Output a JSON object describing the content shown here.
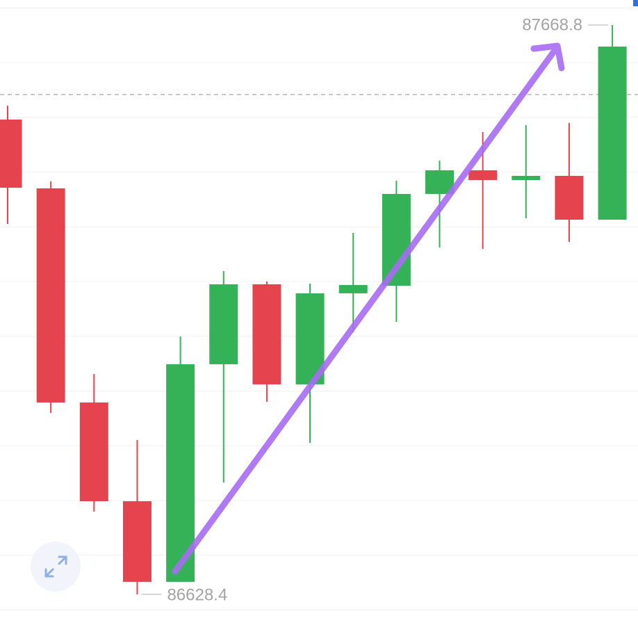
{
  "chart_data": {
    "type": "candlestick",
    "categories": [
      null,
      null,
      null,
      null,
      null,
      null,
      null,
      null,
      null,
      null,
      null,
      null,
      null,
      null,
      null
    ],
    "series": {
      "open": [
        87496.0,
        87370.3,
        86979.0,
        86798.6,
        86651.3,
        87048.9,
        87195.0,
        87012.1,
        87178.5,
        87192.4,
        87360.1,
        87403.3,
        87385.5,
        87393.1,
        87313.1
      ],
      "high": [
        87521.4,
        87383.0,
        87031.1,
        86910.4,
        87099.7,
        87219.1,
        87200.1,
        87196.2,
        87289.0,
        87384.3,
        87421.1,
        87473.2,
        87485.9,
        87489.7,
        87668.8
      ],
      "low": [
        87305.5,
        86960.0,
        86779.6,
        86628.4,
        86651.3,
        86832.9,
        86980.3,
        86905.3,
        87107.3,
        87126.4,
        87262.3,
        87259.8,
        87315.7,
        87272.5,
        87313.1
      ],
      "close": [
        87371.5,
        86979.0,
        86798.6,
        86651.3,
        87048.9,
        87195.0,
        87012.1,
        87178.5,
        87193.7,
        87360.1,
        87403.3,
        87385.5,
        87393.1,
        87313.1,
        87629.4
      ]
    },
    "up_color": "#35b257",
    "down_color": "#e5444f",
    "price_line": 87541.8,
    "ylim": [
      86585.2,
      87714.5
    ],
    "yticks": [
      86600,
      86700,
      86800,
      86900,
      87000,
      87100,
      87200,
      87300,
      87400,
      87500,
      87600,
      87700
    ],
    "grid": true
  }
}
